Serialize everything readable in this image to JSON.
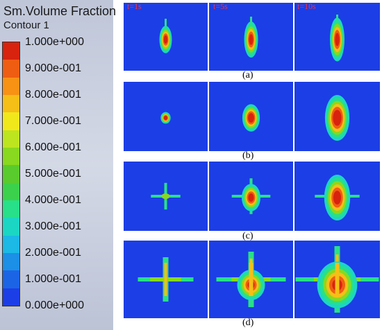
{
  "legend": {
    "title": "Sm.Volume Fraction",
    "subtitle": "Contour 1",
    "ticks": [
      "1.000e+000",
      "9.000e-001",
      "8.000e-001",
      "7.000e-001",
      "6.000e-001",
      "5.000e-001",
      "4.000e-001",
      "3.000e-001",
      "2.000e-001",
      "1.000e-001",
      "0.000e+000"
    ],
    "colors": [
      "#d8230f",
      "#ef5d12",
      "#f79215",
      "#f5bf17",
      "#f1e81c",
      "#bde51f",
      "#88d91f",
      "#5acb2c",
      "#3cd14c",
      "#28e089",
      "#1cd6c4",
      "#1cb8e6",
      "#1c8fe6",
      "#1c64e6",
      "#1c3ee6"
    ]
  },
  "time_labels": [
    "t=1s",
    "t=5s",
    "t=10s"
  ],
  "row_labels": [
    "(a)",
    "(b)",
    "(c)",
    "(d)"
  ]
}
